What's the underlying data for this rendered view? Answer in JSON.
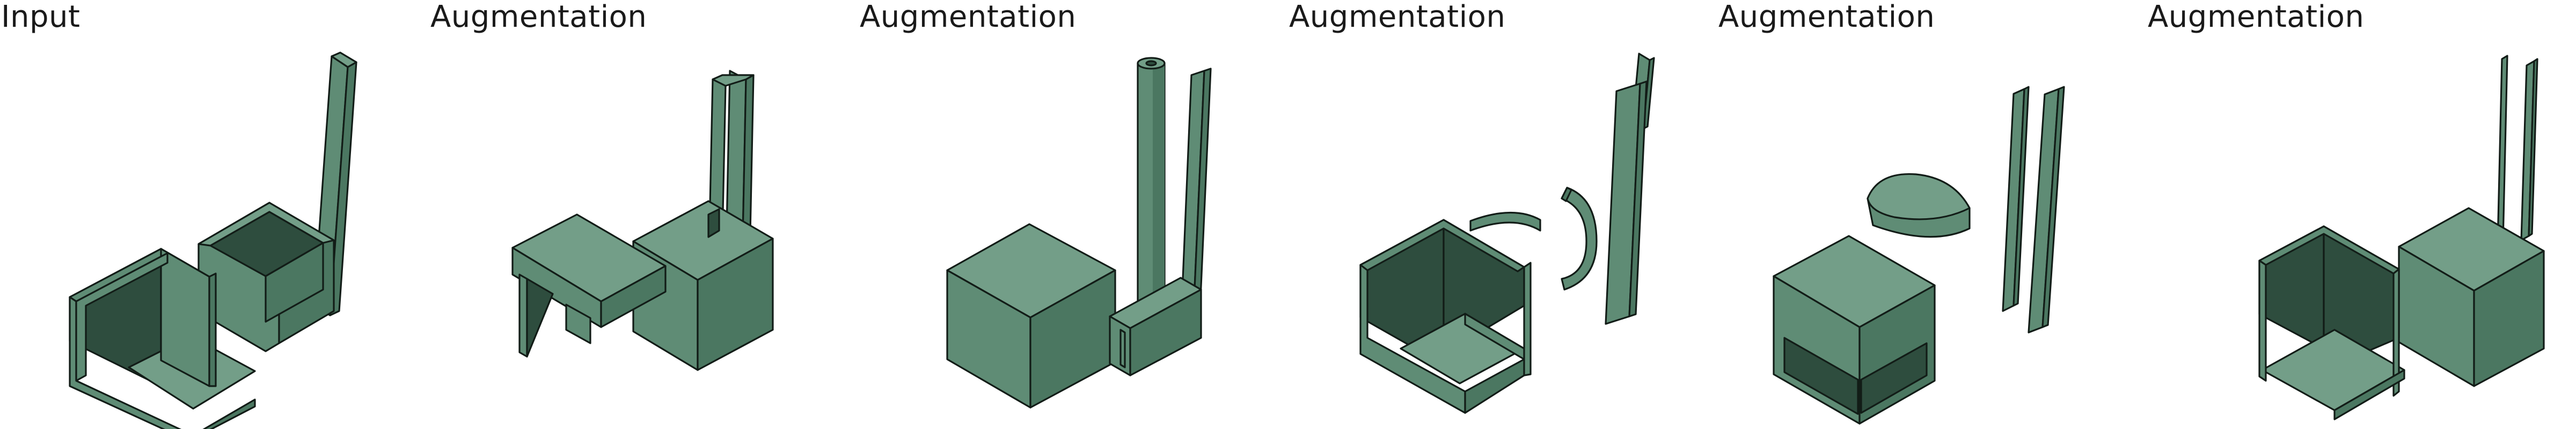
{
  "panels": [
    {
      "id": "input",
      "label": "Input"
    },
    {
      "id": "aug1",
      "label": "Augmentation"
    },
    {
      "id": "aug2",
      "label": "Augmentation"
    },
    {
      "id": "aug3",
      "label": "Augmentation"
    },
    {
      "id": "aug4",
      "label": "Augmentation"
    },
    {
      "id": "aug5",
      "label": "Augmentation"
    }
  ],
  "colors": {
    "top": "#739e88",
    "front": "#5f8c75",
    "side": "#4b7761",
    "dark": "#2e4d3e",
    "edge": "#121c17",
    "background": "#ffffff",
    "text": "#1a1a1a"
  }
}
